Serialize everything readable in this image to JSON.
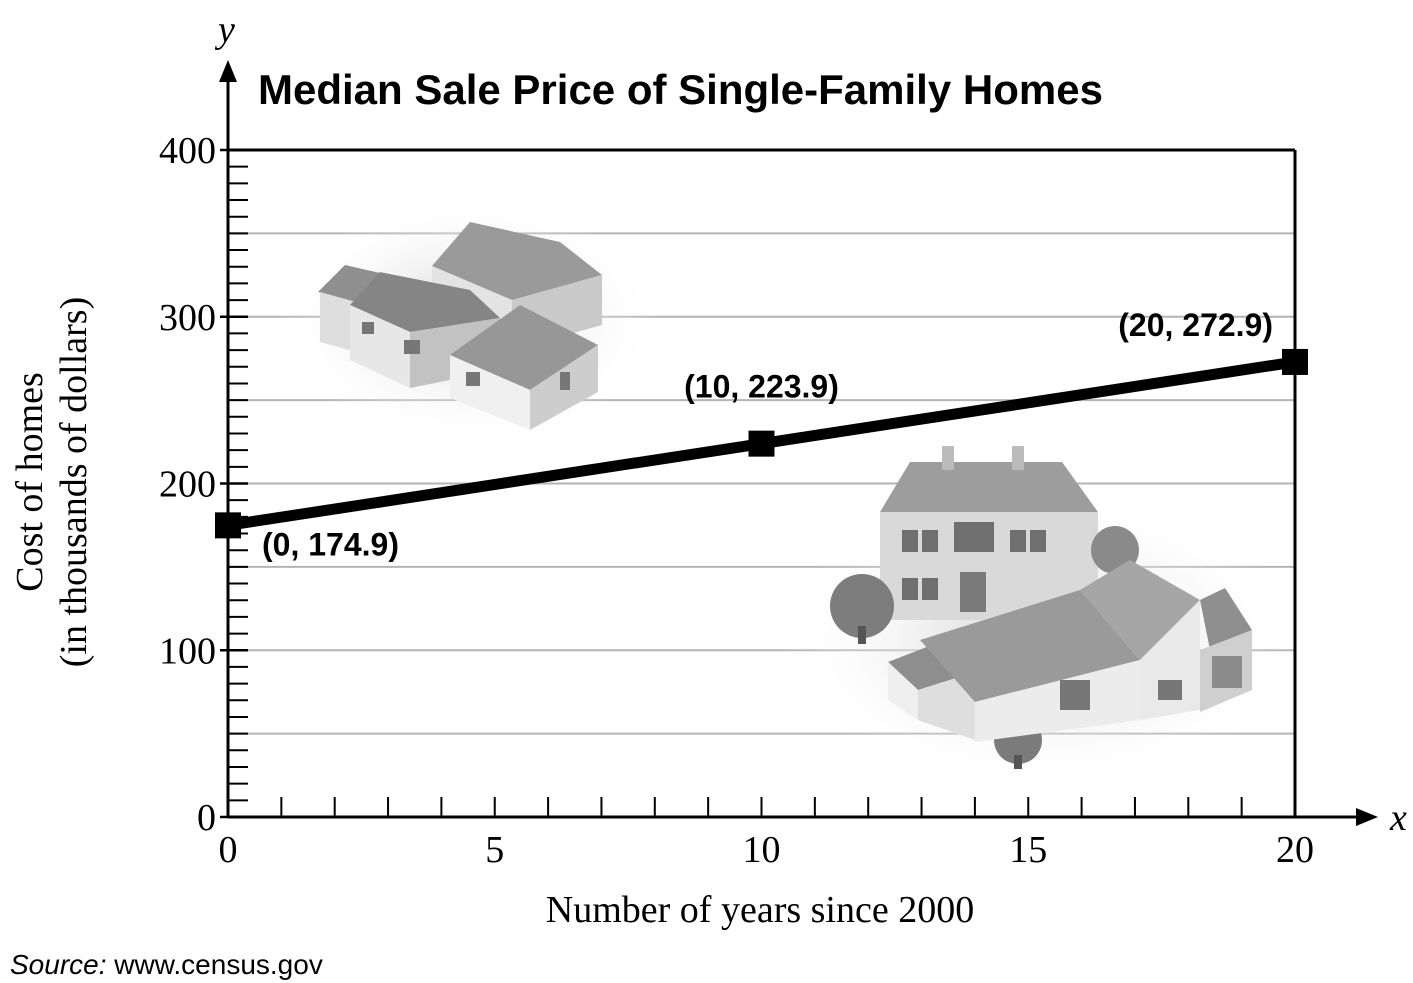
{
  "chart_data": {
    "type": "line",
    "title": "Median Sale Price of Single-Family Homes",
    "xlabel": "Number of years since 2000",
    "ylabel_lines": [
      "Cost of homes",
      "(in thousands of dollars)"
    ],
    "x_axis_var": "x",
    "y_axis_var": "y",
    "xlim": [
      0,
      20
    ],
    "ylim": [
      0,
      400
    ],
    "x_ticks": [
      "0",
      "5",
      "10",
      "15",
      "20"
    ],
    "y_ticks": [
      "0",
      "100",
      "200",
      "300",
      "400"
    ],
    "grid": true,
    "points": [
      {
        "x": 0,
        "y": 174.9,
        "label": "(0, 174.9)"
      },
      {
        "x": 10,
        "y": 223.9,
        "label": "(10, 223.9)"
      },
      {
        "x": 20,
        "y": 272.9,
        "label": "(20, 272.9)"
      }
    ],
    "source_prefix": "Source:",
    "source_text": " www.census.gov"
  },
  "colors": {
    "line": "#000000",
    "grid": "#b4b4b4",
    "house_roof": "#8a8a8a",
    "house_wall": "#d6d6d6"
  },
  "decorations": [
    "houses-illustration-top",
    "houses-illustration-bottom"
  ]
}
